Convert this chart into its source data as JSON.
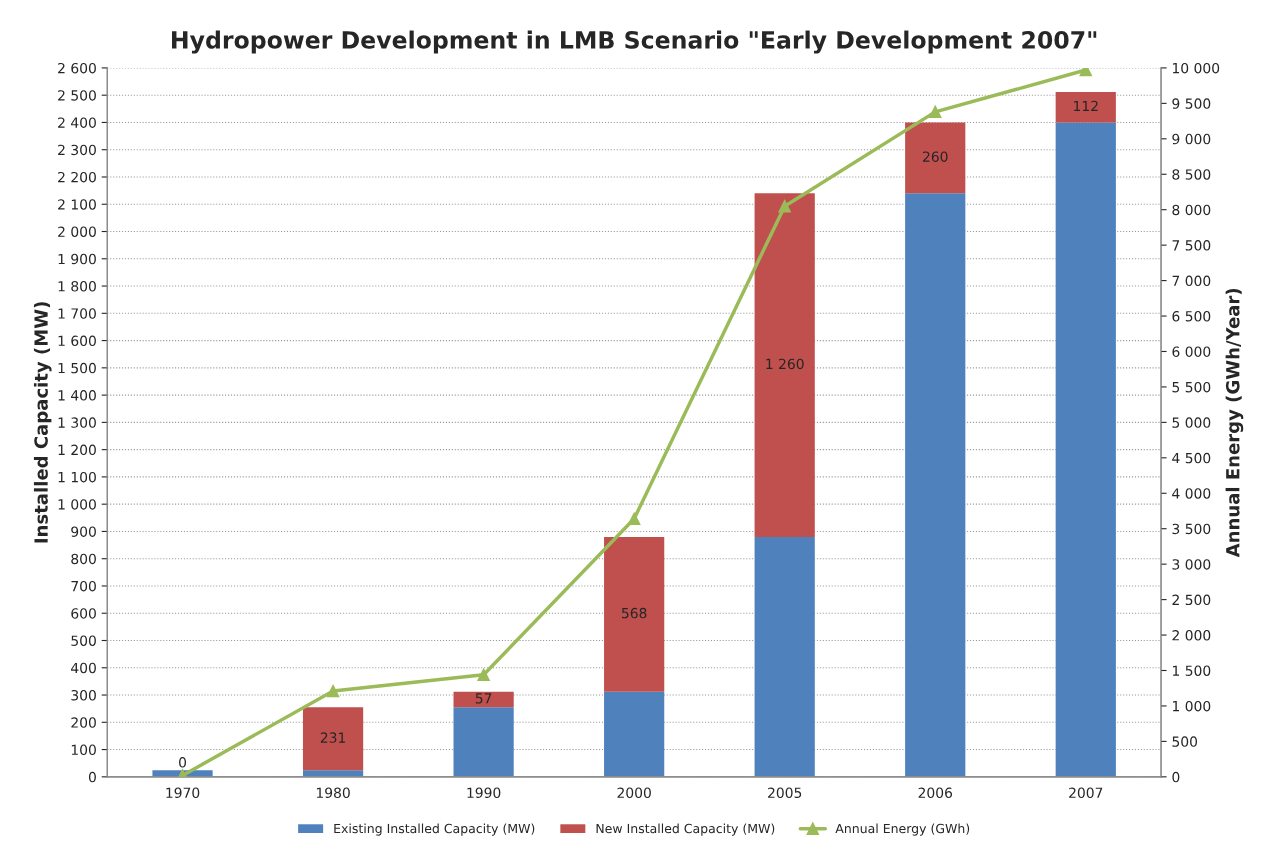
{
  "chart_data": {
    "type": "bar",
    "title": "Hydropower Development in LMB Scenario \"Early Development 2007\"",
    "ylabel": "Installed Capacity (MW)",
    "y2label": "Annual Energy (GWh/Year)",
    "categories": [
      "1970",
      "1980",
      "1990",
      "2000",
      "2005",
      "2006",
      "2007"
    ],
    "stacked": true,
    "series": [
      {
        "name": "Existing Installed Capacity (MW)",
        "color": "#4f81bd",
        "values": [
          24,
          24,
          255,
          312,
          880,
          2140,
          2400
        ]
      },
      {
        "name": "New Installed Capacity (MW)",
        "color": "#c0504d",
        "values": [
          0,
          231,
          57,
          568,
          1260,
          260,
          112
        ],
        "value_labels": [
          "0",
          "231",
          "57",
          "568",
          "1 260",
          "260",
          "112"
        ]
      },
      {
        "name": "Annual Energy (GWh)",
        "type": "line",
        "axis": "y2",
        "color": "#9bbb59",
        "marker": "triangle",
        "values": [
          20,
          1210,
          1440,
          3640,
          8050,
          9380,
          9970
        ]
      }
    ],
    "ylim": [
      0,
      2600
    ],
    "yticks": [
      0,
      100,
      200,
      300,
      400,
      500,
      600,
      700,
      800,
      900,
      {
        "value": 1000,
        "label": "1 000"
      },
      {
        "value": 1100,
        "label": "1 100"
      },
      {
        "value": 1200,
        "label": "1 200"
      },
      {
        "value": 1300,
        "label": "1 300"
      },
      {
        "value": 1400,
        "label": "1 400"
      },
      {
        "value": 1500,
        "label": "1 500"
      },
      {
        "value": 1600,
        "label": "1 600"
      },
      {
        "value": 1700,
        "label": "1 700"
      },
      {
        "value": 1800,
        "label": "1 800"
      },
      {
        "value": 1900,
        "label": "1 900"
      },
      {
        "value": 2000,
        "label": "2 000"
      },
      {
        "value": 2100,
        "label": "2 100"
      },
      {
        "value": 2200,
        "label": "2 200"
      },
      {
        "value": 2300,
        "label": "2 300"
      },
      {
        "value": 2400,
        "label": "2 400"
      },
      {
        "value": 2500,
        "label": "2 500"
      },
      {
        "value": 2600,
        "label": "2 600"
      }
    ],
    "y2lim": [
      0,
      10000
    ],
    "y2ticks": [
      0,
      500,
      {
        "value": 1000,
        "label": "1 000"
      },
      {
        "value": 1500,
        "label": "1 500"
      },
      {
        "value": 2000,
        "label": "2 000"
      },
      {
        "value": 2500,
        "label": "2 500"
      },
      {
        "value": 3000,
        "label": "3 000"
      },
      {
        "value": 3500,
        "label": "3 500"
      },
      {
        "value": 4000,
        "label": "4 000"
      },
      {
        "value": 4500,
        "label": "4 500"
      },
      {
        "value": 5000,
        "label": "5 000"
      },
      {
        "value": 5500,
        "label": "5 500"
      },
      {
        "value": 6000,
        "label": "6 000"
      },
      {
        "value": 6500,
        "label": "6 500"
      },
      {
        "value": 7000,
        "label": "7 000"
      },
      {
        "value": 7500,
        "label": "7 500"
      },
      {
        "value": 8000,
        "label": "8 000"
      },
      {
        "value": 8500,
        "label": "8 500"
      },
      {
        "value": 9000,
        "label": "9 000"
      },
      {
        "value": 9500,
        "label": "9 500"
      },
      {
        "value": 10000,
        "label": "10 000"
      }
    ],
    "grid": "y",
    "legend": "bottom"
  }
}
